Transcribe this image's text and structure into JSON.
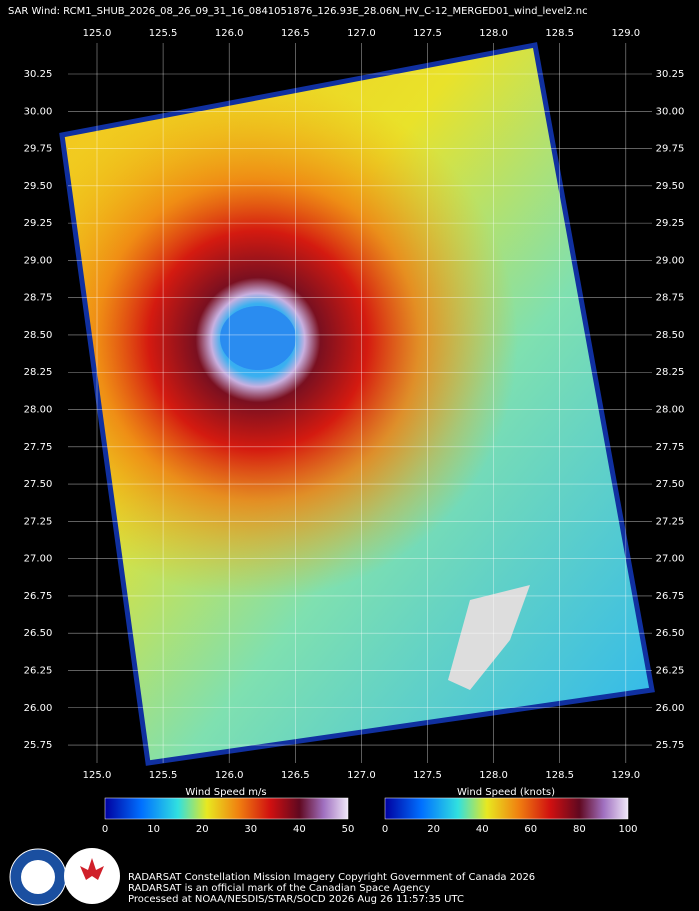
{
  "header": {
    "title": "SAR Wind: RCM1_SHUB_2026_08_26_09_31_16_0841051876_126.93E_28.06N_HV_C-12_MERGED01_wind_level2.nc"
  },
  "map": {
    "lon_labels": [
      "125.0",
      "125.5",
      "126.0",
      "126.5",
      "127.0",
      "127.5",
      "128.0",
      "128.5",
      "129.0"
    ],
    "lat_labels": [
      "30.25",
      "30.00",
      "29.75",
      "29.50",
      "29.25",
      "29.00",
      "28.75",
      "28.50",
      "28.25",
      "28.00",
      "27.75",
      "27.50",
      "27.25",
      "27.00",
      "26.75",
      "26.50",
      "26.25",
      "26.00",
      "25.75"
    ]
  },
  "colorbars": [
    {
      "title": "Wind Speed m/s",
      "ticks": [
        "0",
        "10",
        "20",
        "30",
        "40",
        "50"
      ]
    },
    {
      "title": "Wind Speed (knots)",
      "ticks": [
        "0",
        "20",
        "40",
        "60",
        "80",
        "100"
      ]
    }
  ],
  "credits": [
    "RADARSAT Constellation Mission Imagery Copyright Government of Canada 2026",
    "RADARSAT is an official mark of the Canadian Space Agency",
    "Processed at NOAA/NESDIS/STAR/SOCD 2026 Aug 26 11:57:35 UTC"
  ]
}
